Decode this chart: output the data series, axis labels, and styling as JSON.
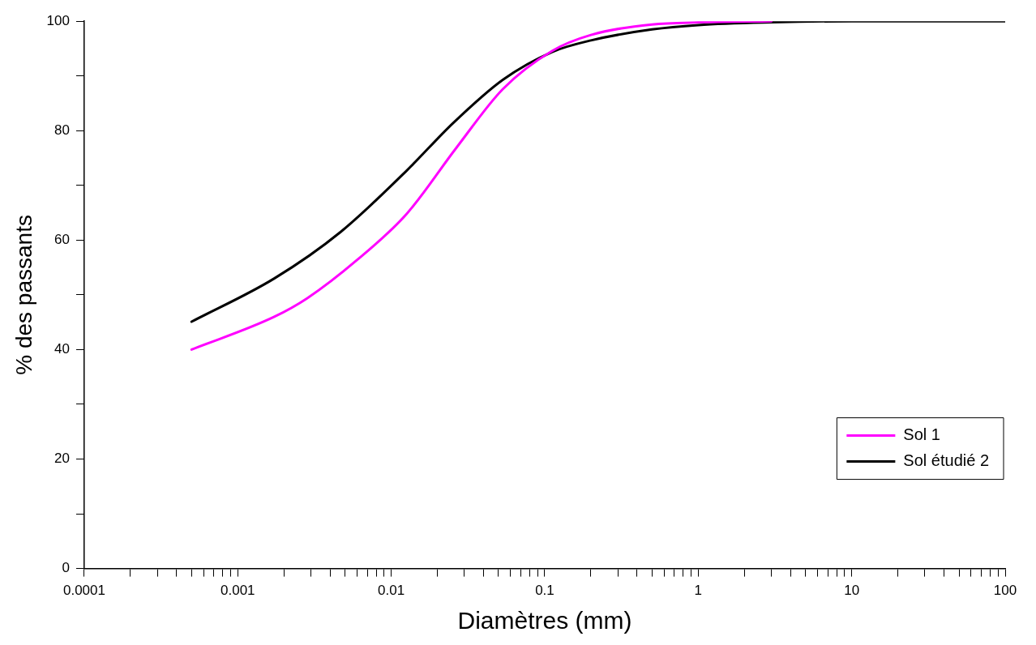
{
  "chart_data": {
    "type": "line",
    "xlabel": "Diamètres (mm)",
    "ylabel": "% des passants",
    "log": "x",
    "grid": false,
    "legend": "bottom right",
    "marker": "none",
    "line_style": "solid",
    "xlim": [
      0.0001,
      100
    ],
    "ylim": [
      0,
      100
    ],
    "xticks": [
      0.0001,
      {
        "value": 0.0002,
        "label": null
      },
      {
        "value": 0.0003,
        "label": null
      },
      {
        "value": 0.0004,
        "label": null
      },
      {
        "value": 0.0005,
        "label": null
      },
      {
        "value": 0.0006,
        "label": null
      },
      {
        "value": 0.0007,
        "label": null
      },
      {
        "value": 0.0008,
        "label": null
      },
      {
        "value": 0.0009,
        "label": null
      },
      0.001,
      {
        "value": 0.002,
        "label": null
      },
      {
        "value": 0.003,
        "label": null
      },
      {
        "value": 0.004,
        "label": null
      },
      {
        "value": 0.005,
        "label": null
      },
      {
        "value": 0.006,
        "label": null
      },
      {
        "value": 0.007,
        "label": null
      },
      {
        "value": 0.008,
        "label": null
      },
      {
        "value": 0.009,
        "label": null
      },
      0.01,
      {
        "value": 0.02,
        "label": null
      },
      {
        "value": 0.03,
        "label": null
      },
      {
        "value": 0.04,
        "label": null
      },
      {
        "value": 0.05,
        "label": null
      },
      {
        "value": 0.06,
        "label": null
      },
      {
        "value": 0.07,
        "label": null
      },
      {
        "value": 0.08,
        "label": null
      },
      {
        "value": 0.09,
        "label": null
      },
      0.1,
      {
        "value": 0.2,
        "label": null
      },
      {
        "value": 0.3,
        "label": null
      },
      {
        "value": 0.4,
        "label": null
      },
      {
        "value": 0.5,
        "label": null
      },
      {
        "value": 0.6,
        "label": null
      },
      {
        "value": 0.7,
        "label": null
      },
      {
        "value": 0.8,
        "label": null
      },
      {
        "value": 0.9,
        "label": null
      },
      1,
      {
        "value": 2,
        "label": null
      },
      {
        "value": 3,
        "label": null
      },
      {
        "value": 4,
        "label": null
      },
      {
        "value": 5,
        "label": null
      },
      {
        "value": 6,
        "label": null
      },
      {
        "value": 7,
        "label": null
      },
      {
        "value": 8,
        "label": null
      },
      {
        "value": 9,
        "label": null
      },
      10,
      {
        "value": 20,
        "label": null
      },
      {
        "value": 30,
        "label": null
      },
      {
        "value": 40,
        "label": null
      },
      {
        "value": 50,
        "label": null
      },
      {
        "value": 60,
        "label": null
      },
      {
        "value": 70,
        "label": null
      },
      {
        "value": 80,
        "label": null
      },
      {
        "value": 90,
        "label": null
      },
      100
    ],
    "yticks": [
      0,
      {
        "value": 10,
        "label": null
      },
      20,
      {
        "value": 30,
        "label": null
      },
      40,
      {
        "value": 50,
        "label": null
      },
      60,
      {
        "value": 70,
        "label": null
      },
      80,
      {
        "value": 90,
        "label": null
      },
      100
    ],
    "series": [
      {
        "name": "Sol 1",
        "color": "#ff00ff",
        "x": [
          0.0005,
          0.00173,
          0.00284,
          0.006,
          0.0126,
          0.0266,
          0.0533,
          0.112,
          0.2,
          0.5,
          1,
          3
        ],
        "values": [
          40,
          46,
          49.4,
          56.4,
          64.8,
          76.9,
          87.6,
          94.6,
          97.5,
          99.4,
          99.8,
          100
        ]
      },
      {
        "name": "Sol étudié 2",
        "color": "#000000",
        "x": [
          0.0005,
          0.00173,
          0.00468,
          0.0126,
          0.0253,
          0.0533,
          0.112,
          0.2,
          0.5,
          1,
          3,
          10,
          100
        ],
        "values": [
          45.1,
          53,
          61.5,
          72.7,
          81.4,
          89.3,
          94.4,
          96.5,
          98.5,
          99.3,
          99.8,
          100,
          100
        ]
      }
    ]
  }
}
